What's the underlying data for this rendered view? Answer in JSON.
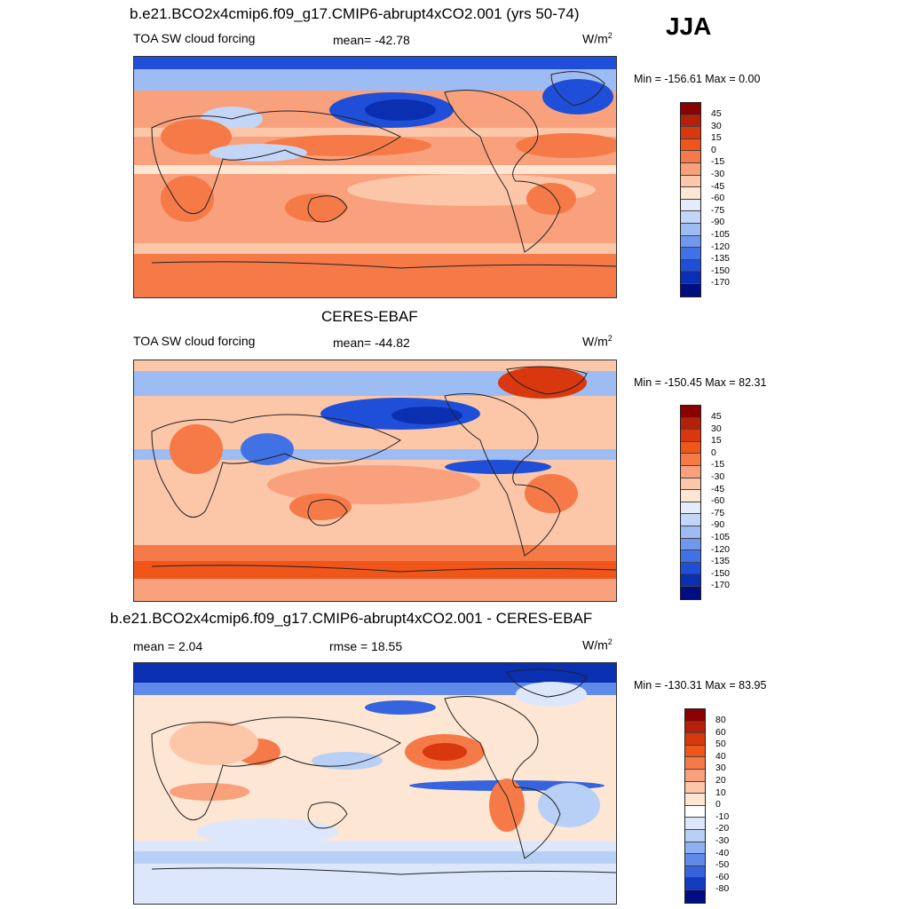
{
  "season": "JJA",
  "units_main": "W/m",
  "units_sup": "2",
  "panels": [
    {
      "title": "b.e21.BCO2x4cmip6.f09_g17.CMIP6-abrupt4xCO2.001 (yrs 50-74)",
      "variable": "TOA SW cloud forcing",
      "mean": "mean= -42.78",
      "minmax": "Min = -156.61 Max =   0.00",
      "colorbar_labels": [
        "45",
        "30",
        "15",
        "0",
        "-15",
        "-30",
        "-45",
        "-60",
        "-75",
        "-90",
        "-105",
        "-120",
        "-135",
        "-150",
        "-170"
      ],
      "colorbar_colors": [
        "#8b0000",
        "#b5200b",
        "#d9380e",
        "#f0561a",
        "#f57a48",
        "#f9a07c",
        "#fcc6a8",
        "#fde6d3",
        "#e3ecfb",
        "#c3d6f7",
        "#9dbcf3",
        "#7098ee",
        "#4071e5",
        "#1f4fd8",
        "#0a2fb0",
        "#000e82"
      ]
    },
    {
      "title": "CERES-EBAF",
      "variable": "TOA SW cloud forcing",
      "mean": "mean= -44.82",
      "minmax": "Min = -150.45 Max =  82.31",
      "colorbar_labels": [
        "45",
        "30",
        "15",
        "0",
        "-15",
        "-30",
        "-45",
        "-60",
        "-75",
        "-90",
        "-105",
        "-120",
        "-135",
        "-150",
        "-170"
      ],
      "colorbar_colors": [
        "#8b0000",
        "#b5200b",
        "#d9380e",
        "#f0561a",
        "#f57a48",
        "#f9a07c",
        "#fcc6a8",
        "#fde6d3",
        "#e3ecfb",
        "#c3d6f7",
        "#9dbcf3",
        "#7098ee",
        "#4071e5",
        "#1f4fd8",
        "#0a2fb0",
        "#000e82"
      ]
    },
    {
      "title": "b.e21.BCO2x4cmip6.f09_g17.CMIP6-abrupt4xCO2.001 - CERES-EBAF",
      "mean": "mean =   2.04",
      "rmse": "rmse =  18.55",
      "minmax": "Min = -130.31 Max =  83.95",
      "colorbar_labels": [
        "80",
        "60",
        "50",
        "40",
        "30",
        "20",
        "10",
        "0",
        "-10",
        "-20",
        "-30",
        "-40",
        "-50",
        "-60",
        "-80"
      ],
      "colorbar_colors": [
        "#8b0000",
        "#b5200b",
        "#d9380e",
        "#f0561a",
        "#f57a48",
        "#f9a07c",
        "#fcc6a8",
        "#fde6d3",
        "#ffffff",
        "#dce7fb",
        "#b8cff6",
        "#8fb1f1",
        "#5f8ae9",
        "#3564de",
        "#133cbf",
        "#000e82"
      ]
    }
  ]
}
